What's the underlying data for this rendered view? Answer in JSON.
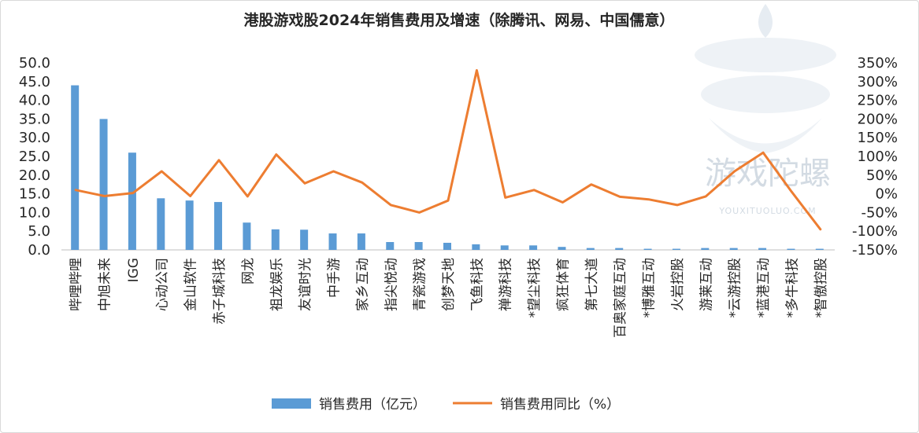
{
  "chart_data": {
    "type": "bar+line",
    "title": "港股游戏股2024年销售费用及增速（除腾讯、网易、中国儒意）",
    "categories": [
      "哔哩哔哩",
      "中旭未来",
      "IGG",
      "心动公司",
      "金山软件",
      "赤子城科技",
      "网龙",
      "祖龙娱乐",
      "友谊时光",
      "中手游",
      "家乡互动",
      "指尖悦动",
      "青瓷游戏",
      "创梦天地",
      "飞鱼科技",
      "禅游科技",
      "*望尘科技",
      "疯狂体育",
      "第七大道",
      "百奥家庭互动",
      "*博雅互动",
      "火岩控股",
      "游莱互动",
      "*云游控股",
      "*蓝港互动",
      "*多牛科技",
      "*智傲控股"
    ],
    "y_left": {
      "ylim": [
        0,
        50
      ],
      "ticks": [
        "0.0",
        "5.0",
        "10.0",
        "15.0",
        "20.0",
        "25.0",
        "30.0",
        "35.0",
        "40.0",
        "45.0",
        "50.0"
      ]
    },
    "y_right": {
      "ylim": [
        -150,
        350
      ],
      "ticks": [
        "-150%",
        "-100%",
        "-50%",
        "0%",
        "50%",
        "100%",
        "150%",
        "200%",
        "250%",
        "300%",
        "350%"
      ]
    },
    "series": [
      {
        "name": "销售费用（亿元）",
        "type": "bar",
        "axis": "left",
        "color": "#5b9bd5",
        "values": [
          44.0,
          35.0,
          26.0,
          13.8,
          13.2,
          12.8,
          7.3,
          5.5,
          5.4,
          4.4,
          4.4,
          2.1,
          2.1,
          1.9,
          1.5,
          1.2,
          1.2,
          0.8,
          0.5,
          0.5,
          0.3,
          0.3,
          0.5,
          0.5,
          0.5,
          0.3,
          0.3
        ]
      },
      {
        "name": "销售费用同比（%）",
        "type": "line",
        "axis": "right",
        "color": "#ed7d31",
        "values": [
          10,
          -6,
          2,
          60,
          -6,
          90,
          -7,
          105,
          28,
          60,
          30,
          -30,
          -50,
          -18,
          330,
          -10,
          10,
          -23,
          25,
          -8,
          -15,
          -30,
          -7,
          60,
          110,
          5,
          -95
        ]
      }
    ],
    "legend": {
      "placement": "bottom-center"
    }
  },
  "watermark": {
    "text": "游戏陀螺",
    "subtext": "YOUXITUOLUO.COM"
  }
}
